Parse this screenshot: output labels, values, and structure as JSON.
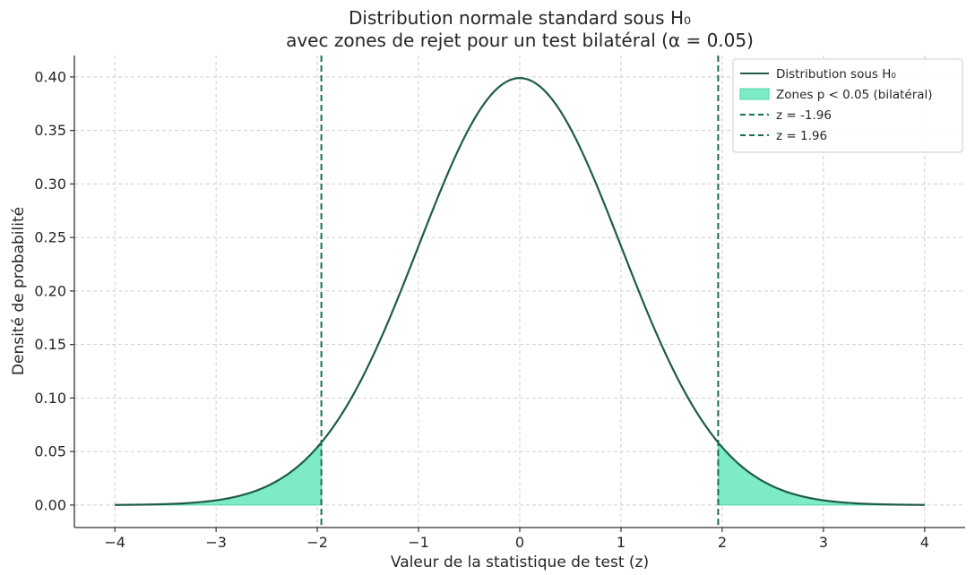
{
  "chart_data": {
    "type": "line",
    "title": [
      "Distribution normale standard sous H₀",
      "avec zones de rejet pour un test bilatéral (α = 0.05)"
    ],
    "xlabel": "Valeur de la statistique de test (z)",
    "ylabel": "Densité de probabilité",
    "xlim": [
      -4.4,
      4.4
    ],
    "ylim": [
      -0.021,
      0.42
    ],
    "xticks": [
      -4,
      -3,
      -2,
      -1,
      0,
      1,
      2,
      3,
      4
    ],
    "xtick_labels": [
      "−4",
      "−3",
      "−2",
      "−1",
      "0",
      "1",
      "2",
      "3",
      "4"
    ],
    "yticks": [
      0.0,
      0.05,
      0.1,
      0.15,
      0.2,
      0.25,
      0.3,
      0.35,
      0.4
    ],
    "ytick_labels": [
      "0.00",
      "0.05",
      "0.10",
      "0.15",
      "0.20",
      "0.25",
      "0.30",
      "0.35",
      "0.40"
    ],
    "grid": true,
    "curve": {
      "label": "Distribution sous H₀",
      "function": "standard normal pdf",
      "x_range": [
        -4,
        4
      ],
      "mean": 0,
      "sd": 1,
      "peak": 0.399
    },
    "rejection_zones": {
      "label": "Zones p < 0.05 (bilatéral)",
      "left": [
        -4,
        -1.96
      ],
      "right": [
        1.96,
        4
      ]
    },
    "critical_lines": [
      {
        "label": "z = -1.96",
        "x": -1.96
      },
      {
        "label": "z = 1.96",
        "x": 1.96
      }
    ],
    "legend_position": "top-right",
    "colors": {
      "curve": "#1f5c47",
      "fill": "#7debc6",
      "fill_edge": "#4fd6a6",
      "vline": "#17704f"
    }
  }
}
